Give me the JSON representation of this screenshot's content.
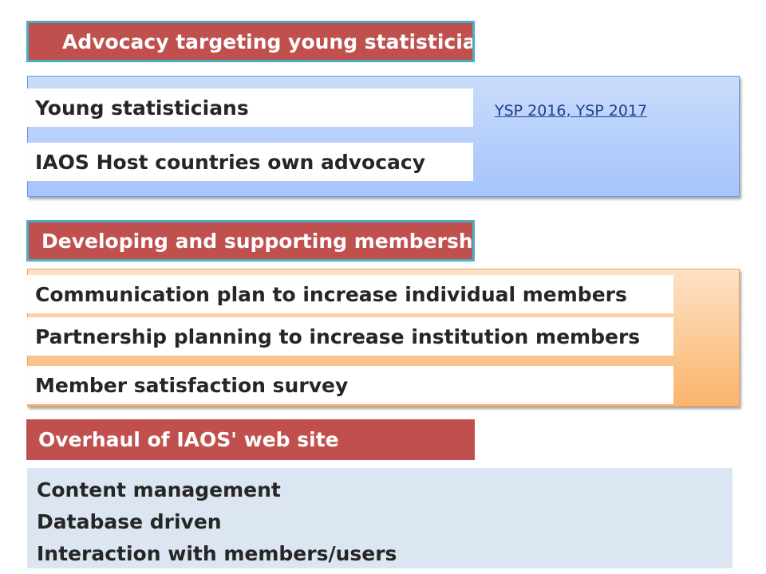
{
  "sections": [
    {
      "header": "Advocacy targeting young statisticians",
      "items": [
        "Young statisticians",
        "IAOS Host countries own advocacy"
      ],
      "link": "YSP 2016, YSP 2017"
    },
    {
      "header": "Developing and supporting membership",
      "items": [
        "Communication plan to increase individual members",
        "Partnership planning to increase institution members",
        "Member satisfaction survey"
      ]
    },
    {
      "header": "Overhaul of IAOS' web site",
      "lines": [
        "Content management",
        "Database driven",
        "Interaction with members/users"
      ]
    }
  ],
  "colors": {
    "header_bg": "#c0504d",
    "header_border": "#4bacc6",
    "blue_panel": "#a6c4fb",
    "orange_panel": "#fbb46c",
    "plain_box": "#dce6f2"
  }
}
